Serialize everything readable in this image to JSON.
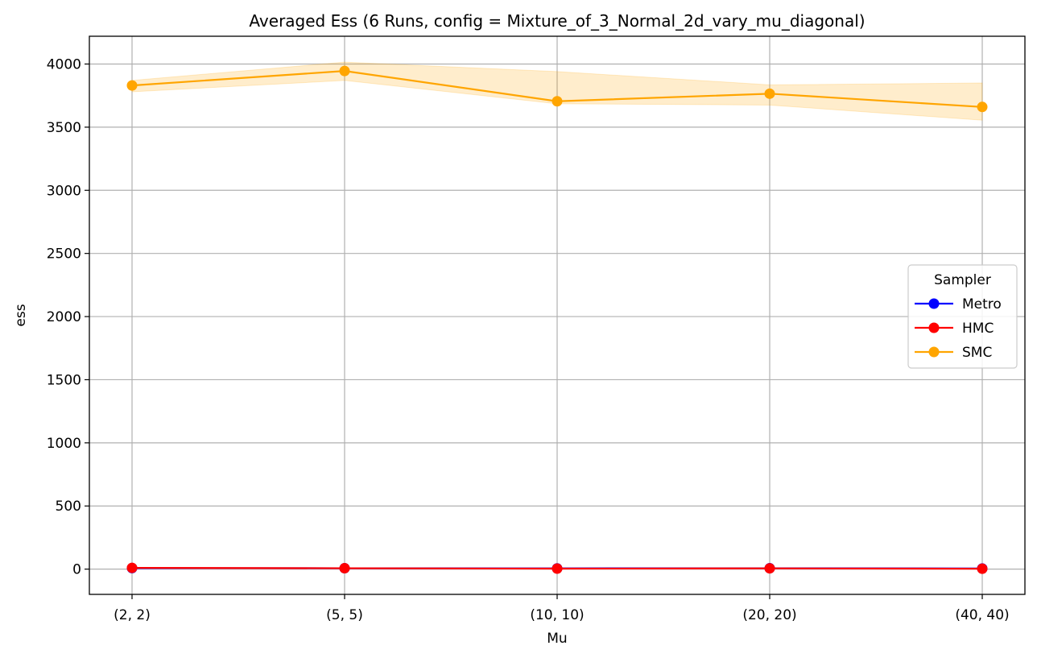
{
  "chart_data": {
    "type": "line",
    "title": "Averaged Ess (6 Runs, config = Mixture_of_3_Normal_2d_vary_mu_diagonal)",
    "xlabel": "Mu",
    "ylabel": "ess",
    "categories": [
      "(2, 2)",
      "(5, 5)",
      "(10, 10)",
      "(20, 20)",
      "(40, 40)"
    ],
    "ylim": [
      -200,
      4220
    ],
    "yticks": [
      0,
      500,
      1000,
      1500,
      2000,
      2500,
      3000,
      3500,
      4000
    ],
    "ytick_labels": [
      "0",
      "500",
      "1000",
      "1500",
      "2000",
      "2500",
      "3000",
      "3500",
      "4000"
    ],
    "grid": true,
    "legend": {
      "title": "Sampler",
      "placement": "center-right"
    },
    "series": [
      {
        "name": "Metro",
        "color": "#0000ff",
        "values": [
          8,
          7,
          6,
          7,
          5
        ],
        "band_low": [
          7,
          6,
          5,
          6,
          4
        ],
        "band_high": [
          9,
          8,
          7,
          8,
          6
        ]
      },
      {
        "name": "HMC",
        "color": "#ff0000",
        "values": [
          10,
          7,
          4,
          6,
          3
        ],
        "band_low": [
          8,
          5,
          2,
          4,
          1
        ],
        "band_high": [
          12,
          9,
          6,
          8,
          5
        ]
      },
      {
        "name": "SMC",
        "color": "#ffa500",
        "values": [
          3830,
          3945,
          3705,
          3765,
          3660
        ],
        "band_low": [
          3780,
          3870,
          3685,
          3675,
          3555
        ],
        "band_high": [
          3870,
          4015,
          3940,
          3835,
          3850
        ]
      }
    ]
  }
}
